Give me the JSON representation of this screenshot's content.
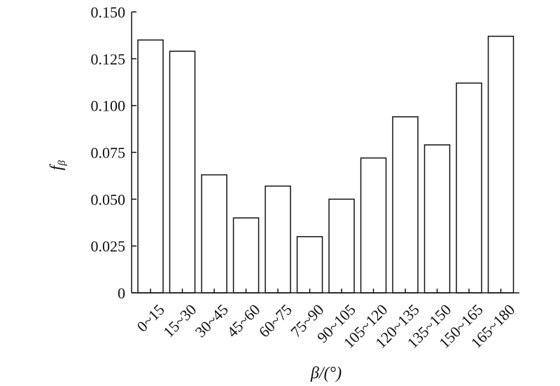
{
  "chart_data": {
    "type": "bar",
    "categories": [
      "0~15",
      "15~30",
      "30~45",
      "45~60",
      "60~75",
      "75~90",
      "90~105",
      "105~120",
      "120~135",
      "135~150",
      "150~165",
      "165~180"
    ],
    "values": [
      0.135,
      0.129,
      0.063,
      0.04,
      0.057,
      0.03,
      0.05,
      0.072,
      0.094,
      0.079,
      0.112,
      0.137
    ],
    "xlabel": "β/(°)",
    "ylabel_main": "f",
    "ylabel_sub": "β",
    "ylim": [
      0,
      0.15
    ],
    "yticks": [
      0,
      0.025,
      0.05,
      0.075,
      0.1,
      0.125,
      0.15
    ],
    "ytick_labels": [
      "0",
      "0.025",
      "0.050",
      "0.075",
      "0.100",
      "0.125",
      "0.150"
    ],
    "grid": false,
    "bar_fill": "#ffffff",
    "bar_stroke": "#111111",
    "axis_color": "#111111"
  }
}
